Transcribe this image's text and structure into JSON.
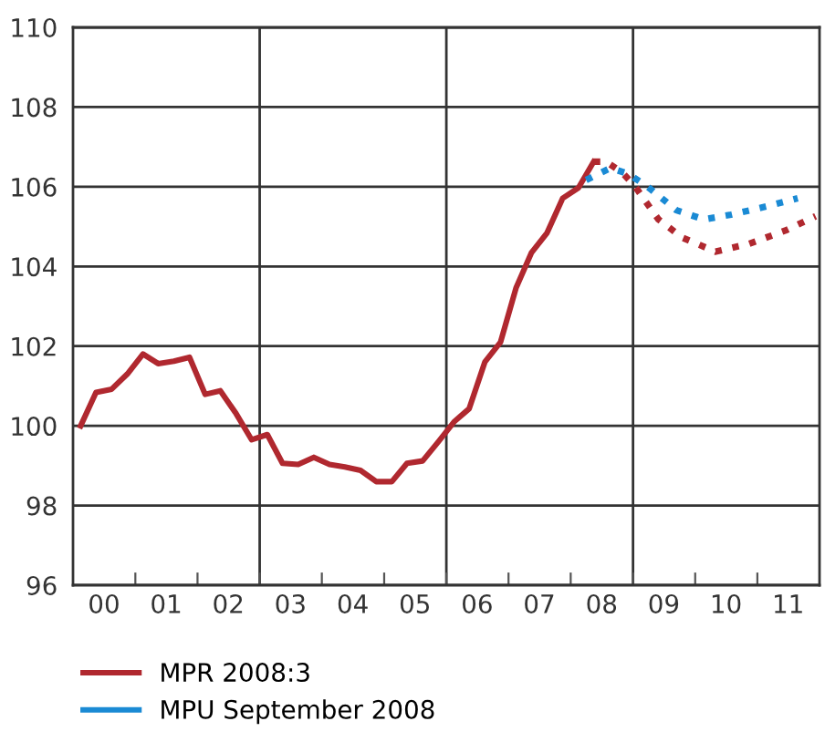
{
  "chart_data": {
    "type": "line",
    "xlim": [
      "2000-01-01",
      "2012-01-01"
    ],
    "ylim": [
      96,
      110
    ],
    "yticks": [
      96,
      98,
      100,
      102,
      104,
      106,
      108,
      110
    ],
    "xticks": [
      {
        "value": "2001-01-01",
        "label": null
      },
      {
        "value": "2002-01-01",
        "label": null
      },
      {
        "value": "2003-01-01",
        "label": null
      },
      {
        "value": "2004-01-01",
        "label": null
      },
      {
        "value": "2005-01-01",
        "label": null
      },
      {
        "value": "2006-01-01",
        "label": null
      },
      {
        "value": "2007-01-01",
        "label": null
      },
      {
        "value": "2008-01-01",
        "label": null
      },
      {
        "value": "2009-01-01",
        "label": null
      },
      {
        "value": "2010-01-01",
        "label": null
      },
      {
        "value": "2011-01-01",
        "label": null
      },
      {
        "value": "2000-07-01",
        "label": "00"
      },
      {
        "value": "2001-07-01",
        "label": "01"
      },
      {
        "value": "2002-07-01",
        "label": "02"
      },
      {
        "value": "2003-07-01",
        "label": "03"
      },
      {
        "value": "2004-07-01",
        "label": "04"
      },
      {
        "value": "2005-07-01",
        "label": "05"
      },
      {
        "value": "2006-07-01",
        "label": "06"
      },
      {
        "value": "2007-07-01",
        "label": "07"
      },
      {
        "value": "2008-07-01",
        "label": "08"
      },
      {
        "value": "2009-07-01",
        "label": "09"
      },
      {
        "value": "2010-07-01",
        "label": "10"
      },
      {
        "value": "2011-07-01",
        "label": "11"
      }
    ],
    "grid": "y",
    "legend": "bottom",
    "marker": "none",
    "ref_lines": [
      {
        "axis": "x",
        "value": "2003-01-01",
        "label": null,
        "color": "#333333"
      },
      {
        "axis": "x",
        "value": "2006-01-01",
        "label": null,
        "color": "#333333"
      },
      {
        "axis": "x",
        "value": "2009-01-01",
        "label": null,
        "color": "#333333"
      }
    ],
    "series": [
      {
        "name": "MPR 2008:3",
        "color": "#b0282f",
        "line_style": "solid",
        "x": [
          "2000-02-15",
          "2000-05-15",
          "2000-08-15",
          "2000-11-15",
          "2001-02-15",
          "2001-05-15",
          "2001-08-15",
          "2001-11-15",
          "2002-02-15",
          "2002-05-15",
          "2002-08-15",
          "2002-11-15",
          "2003-02-15",
          "2003-05-15",
          "2003-08-15",
          "2003-11-15",
          "2004-02-15",
          "2004-05-15",
          "2004-08-15",
          "2004-11-15",
          "2005-02-15",
          "2005-05-15",
          "2005-08-15",
          "2005-11-15",
          "2006-02-15",
          "2006-05-15",
          "2006-08-15",
          "2006-11-15",
          "2007-02-15",
          "2007-05-15",
          "2007-08-15",
          "2007-11-15",
          "2008-02-15",
          "2008-05-15"
        ],
        "values": [
          100.0,
          100.84,
          100.92,
          101.3,
          101.8,
          101.56,
          101.62,
          101.72,
          100.79,
          100.88,
          100.31,
          99.65,
          99.78,
          99.06,
          99.03,
          99.21,
          99.03,
          98.97,
          98.88,
          98.6,
          98.6,
          99.06,
          99.12,
          99.6,
          100.1,
          100.43,
          101.6,
          102.1,
          103.47,
          104.34,
          104.84,
          105.71,
          105.97,
          106.63
        ]
      },
      {
        "color": "#b0282f",
        "line_style": "dotted",
        "x": [
          "2008-05-15",
          "2008-07-26",
          "2008-10-26",
          "2009-01-11",
          "2009-05-30",
          "2009-10-19",
          "2010-05-01",
          "2010-11-14",
          "2011-06-14",
          "2011-12-09"
        ],
        "values": [
          106.63,
          106.63,
          106.37,
          106.02,
          105.18,
          104.72,
          104.37,
          104.57,
          104.9,
          105.26
        ]
      },
      {
        "name": "MPU September 2008",
        "color": "#1a8ad4",
        "line_style": "dotted",
        "x": [
          "2008-04-01",
          "2008-08-22",
          "2008-12-06",
          "2009-03-22",
          "2009-09-13",
          "2010-02-21",
          "2010-07-31",
          "2011-02-28",
          "2011-08-26"
        ],
        "values": [
          106.17,
          106.47,
          106.32,
          106.02,
          105.41,
          105.18,
          105.3,
          105.51,
          105.71
        ]
      }
    ]
  }
}
